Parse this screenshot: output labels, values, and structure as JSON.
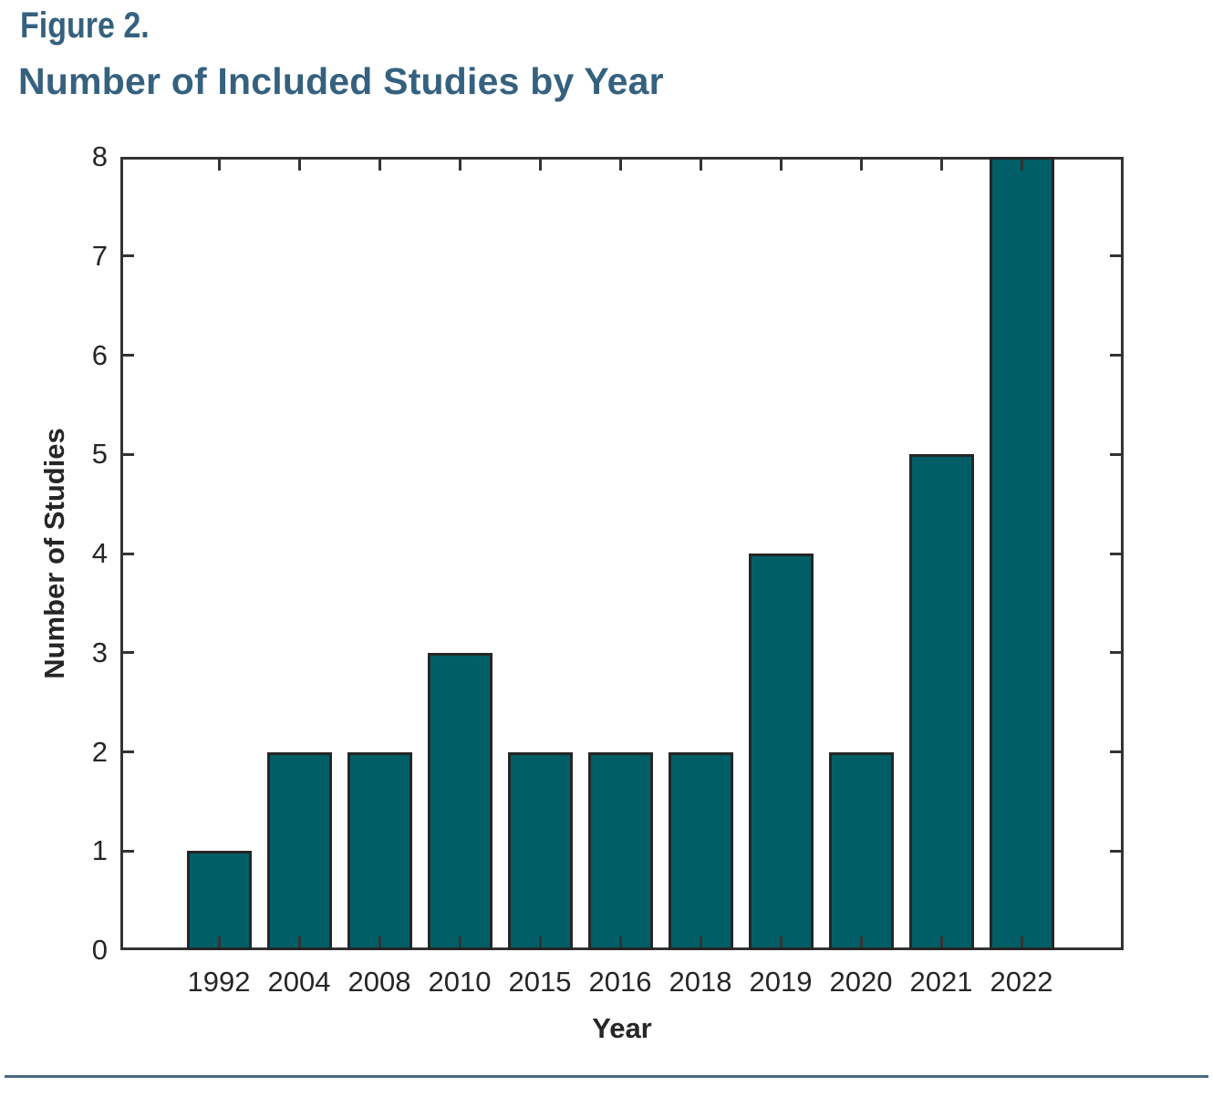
{
  "figure": {
    "label": "Figure 2.",
    "title": "Number of Included Studies by Year"
  },
  "chart_data": {
    "type": "bar",
    "categories": [
      "1992",
      "2004",
      "2008",
      "2010",
      "2015",
      "2016",
      "2018",
      "2019",
      "2020",
      "2021",
      "2022"
    ],
    "values": [
      1,
      2,
      2,
      3,
      2,
      2,
      2,
      4,
      2,
      5,
      8
    ],
    "title": "Number of Included Studies by Year",
    "xlabel": "Year",
    "ylabel": "Number of Studies",
    "ylim": [
      0,
      8
    ],
    "yticks": [
      0,
      1,
      2,
      3,
      4,
      5,
      6,
      7,
      8
    ],
    "grid": false,
    "legend": null,
    "box": true,
    "tick_direction": "in",
    "bar_color": "#005F66",
    "bar_edge_color": "#262626",
    "axis_color": "#333333",
    "text_color": "#262626",
    "title_color": "#35617F",
    "rule_color": "#4A6883"
  }
}
